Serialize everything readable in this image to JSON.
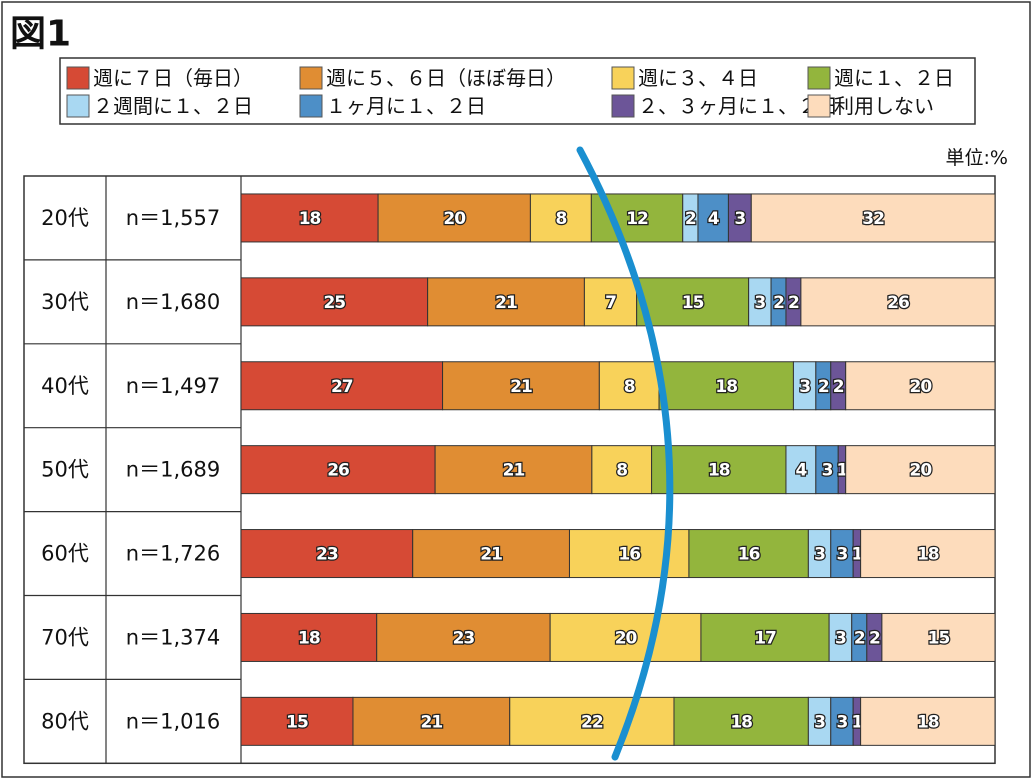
{
  "chart_data": {
    "type": "bar",
    "orientation": "horizontal-stacked-100",
    "title": "図1",
    "unit_label": "単位:%",
    "categories": [
      "20代",
      "30代",
      "40代",
      "50代",
      "60代",
      "70代",
      "80代"
    ],
    "sample_sizes": [
      "n＝1,557",
      "n＝1,680",
      "n＝1,497",
      "n＝1,689",
      "n＝1,726",
      "n＝1,374",
      "n＝1,016"
    ],
    "series": [
      {
        "name": "週に７日（毎日）",
        "color": "#d64a35",
        "values": [
          18,
          25,
          27,
          26,
          23,
          18,
          15
        ]
      },
      {
        "name": "週に５、６日（ほぼ毎日）",
        "color": "#e08d33",
        "values": [
          20,
          21,
          21,
          21,
          21,
          23,
          21
        ]
      },
      {
        "name": "週に３、４日",
        "color": "#f8d25a",
        "values": [
          8,
          7,
          8,
          8,
          16,
          20,
          22
        ]
      },
      {
        "name": "週に１、２日",
        "color": "#93b53d",
        "values": [
          12,
          15,
          18,
          18,
          16,
          17,
          18
        ]
      },
      {
        "name": "２週間に１、２日",
        "color": "#a9d8f2",
        "values": [
          2,
          3,
          3,
          4,
          3,
          3,
          3
        ]
      },
      {
        "name": "１ヶ月に１、２日",
        "color": "#4d8fc7",
        "values": [
          4,
          2,
          2,
          3,
          3,
          2,
          3
        ]
      },
      {
        "name": "２、３ヶ月に１、２日",
        "color": "#6c5598",
        "values": [
          3,
          2,
          2,
          1,
          1,
          2,
          1
        ]
      },
      {
        "name": "利用しない",
        "color": "#fddcbc",
        "values": [
          32,
          26,
          20,
          20,
          18,
          15,
          18
        ]
      }
    ],
    "xlim": [
      0,
      100
    ],
    "legend_position": "top",
    "annotation": "blue curved line overlay"
  }
}
